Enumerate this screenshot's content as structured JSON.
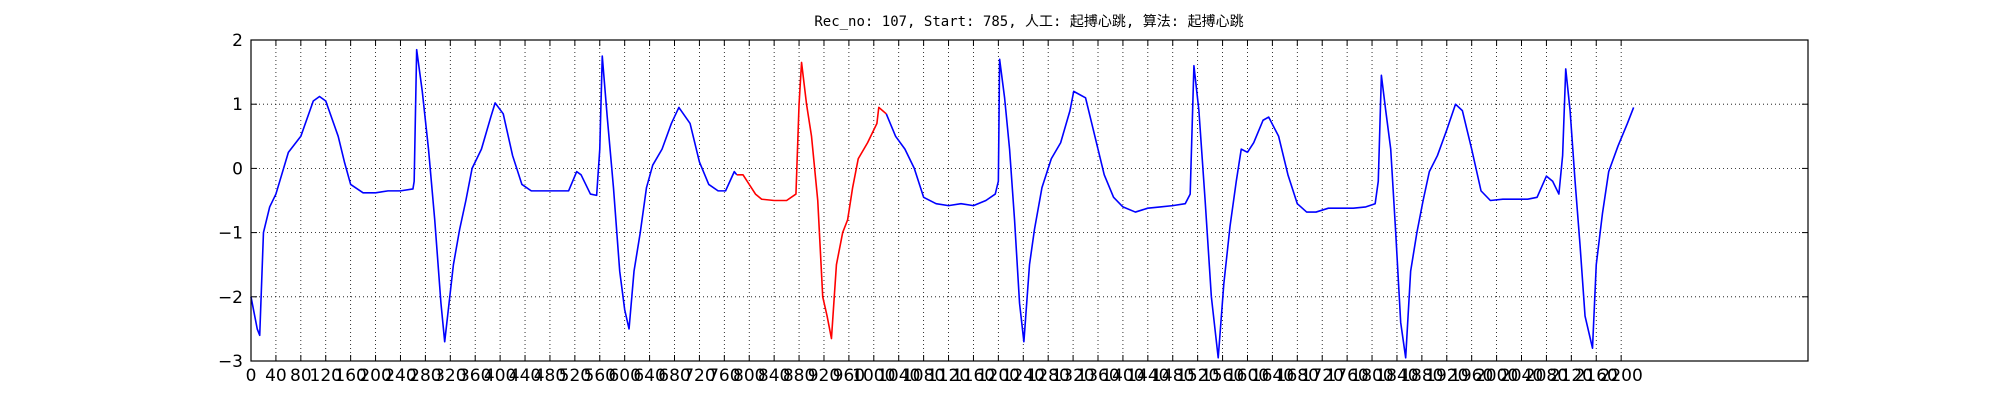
{
  "chart_data": {
    "type": "line",
    "title": "Rec_no: 107, Start: 785, 人工: 起搏心跳, 算法: 起搏心跳",
    "xlim": [
      0,
      2500
    ],
    "xticks": [
      0,
      40,
      80,
      120,
      160,
      200,
      240,
      280,
      320,
      360,
      400,
      440,
      480,
      520,
      560,
      600,
      640,
      680,
      720,
      760,
      800,
      840,
      880,
      920,
      960,
      1000,
      1040,
      1080,
      1120,
      1160,
      1200,
      1240,
      1280,
      1320,
      1360,
      1400,
      1440,
      1480,
      1520,
      1560,
      1600,
      1640,
      1680,
      1720,
      1760,
      1800,
      1840,
      1880,
      1920,
      1960,
      2000,
      2040,
      2080,
      2120,
      2160,
      2200
    ],
    "ylim": [
      -3,
      2
    ],
    "yticks": [
      {
        "value": -3,
        "label": "−3"
      },
      {
        "value": -2,
        "label": "−2"
      },
      {
        "value": -1,
        "label": "−1"
      },
      0,
      1,
      2
    ],
    "grid": true,
    "series": [
      {
        "color": "#0000ff",
        "x": [
          0,
          10,
          14,
          20,
          30,
          40,
          60,
          80,
          100,
          110,
          120,
          140,
          150,
          160,
          180,
          200,
          220,
          240,
          260,
          262,
          266,
          275,
          285,
          295,
          305,
          311,
          325,
          335,
          345,
          355,
          370,
          385,
          392,
          405,
          420,
          435,
          450,
          470,
          490,
          510,
          523,
          530,
          545,
          555,
          560,
          564,
          572,
          582,
          592,
          600,
          607,
          615,
          625,
          635,
          645,
          660,
          675,
          687,
          705,
          720,
          735,
          750,
          762,
          776,
          780,
          900,
          1020,
          1035,
          1050,
          1065,
          1080,
          1100,
          1120,
          1140,
          1160,
          1180,
          1195,
          1200,
          1202,
          1210,
          1218,
          1226,
          1234,
          1241,
          1250,
          1258,
          1270,
          1285,
          1300,
          1315,
          1321,
          1340,
          1355,
          1370,
          1385,
          1400,
          1420,
          1440,
          1460,
          1480,
          1500,
          1508,
          1514,
          1522,
          1532,
          1542,
          1553,
          1562,
          1572,
          1582,
          1590,
          1600,
          1610,
          1625,
          1634,
          1650,
          1665,
          1680,
          1695,
          1710,
          1730,
          1750,
          1770,
          1790,
          1805,
          1810,
          1815,
          1822,
          1830,
          1838,
          1846,
          1854,
          1862,
          1872,
          1882,
          1892,
          1905,
          1920,
          1934,
          1945,
          1960,
          1975,
          1990,
          2010,
          2030,
          2050,
          2065,
          2080,
          2090,
          2100,
          2106,
          2111,
          2118,
          2126,
          2134,
          2142,
          2154,
          2160,
          2170,
          2180,
          2195,
          2210,
          2220
        ],
        "values": [
          -2.0,
          -2.5,
          -2.6,
          -1.0,
          -0.6,
          -0.4,
          0.25,
          0.5,
          1.05,
          1.12,
          1.05,
          0.5,
          0.1,
          -0.25,
          -0.38,
          -0.38,
          -0.35,
          -0.35,
          -0.32,
          -0.2,
          1.85,
          1.2,
          0.3,
          -0.8,
          -2.1,
          -2.7,
          -1.5,
          -0.95,
          -0.5,
          0.0,
          0.3,
          0.8,
          1.02,
          0.85,
          0.2,
          -0.25,
          -0.35,
          -0.35,
          -0.35,
          -0.35,
          -0.05,
          -0.1,
          -0.4,
          -0.42,
          0.3,
          1.75,
          0.8,
          -0.3,
          -1.6,
          -2.2,
          -2.5,
          -1.6,
          -1.0,
          -0.3,
          0.05,
          0.3,
          0.7,
          0.95,
          0.7,
          0.1,
          -0.25,
          -0.35,
          -0.35,
          -0.05,
          -0.1,
          null,
          0.85,
          0.5,
          0.3,
          0.0,
          -0.45,
          -0.55,
          -0.58,
          -0.55,
          -0.58,
          -0.5,
          -0.4,
          -0.2,
          1.7,
          1.1,
          0.3,
          -0.8,
          -2.1,
          -2.7,
          -1.5,
          -0.95,
          -0.3,
          0.15,
          0.4,
          0.9,
          1.2,
          1.1,
          0.5,
          -0.1,
          -0.45,
          -0.6,
          -0.68,
          -0.62,
          -0.6,
          -0.58,
          -0.55,
          -0.4,
          1.6,
          0.9,
          -0.5,
          -2.0,
          -2.95,
          -1.8,
          -0.9,
          -0.2,
          0.3,
          0.25,
          0.4,
          0.75,
          0.8,
          0.5,
          -0.1,
          -0.55,
          -0.68,
          -0.68,
          -0.62,
          -0.62,
          -0.62,
          -0.6,
          -0.55,
          -0.2,
          1.45,
          0.9,
          0.3,
          -1.0,
          -2.4,
          -2.95,
          -1.6,
          -1.0,
          -0.5,
          -0.05,
          0.2,
          0.6,
          1.0,
          0.9,
          0.3,
          -0.35,
          -0.5,
          -0.48,
          -0.48,
          -0.48,
          -0.45,
          -0.12,
          -0.2,
          -0.4,
          0.2,
          1.55,
          0.9,
          -0.2,
          -1.2,
          -2.3,
          -2.8,
          -1.5,
          -0.7,
          -0.05,
          0.35,
          0.7,
          0.95
        ]
      },
      {
        "color": "#ff0000",
        "x": [
          780,
          785,
          790,
          800,
          810,
          820,
          840,
          860,
          875,
          880,
          884,
          892,
          900,
          910,
          918,
          925,
          932,
          940,
          950,
          958,
          966,
          975,
          990,
          1005,
          1008,
          1020
        ],
        "values": [
          -0.1,
          -0.1,
          -0.1,
          -0.25,
          -0.4,
          -0.48,
          -0.5,
          -0.5,
          -0.4,
          1.0,
          1.65,
          1.0,
          0.5,
          -0.5,
          -2.0,
          -2.3,
          -2.65,
          -1.5,
          -1.0,
          -0.8,
          -0.3,
          0.15,
          0.4,
          0.7,
          0.95,
          0.85
        ]
      }
    ]
  }
}
